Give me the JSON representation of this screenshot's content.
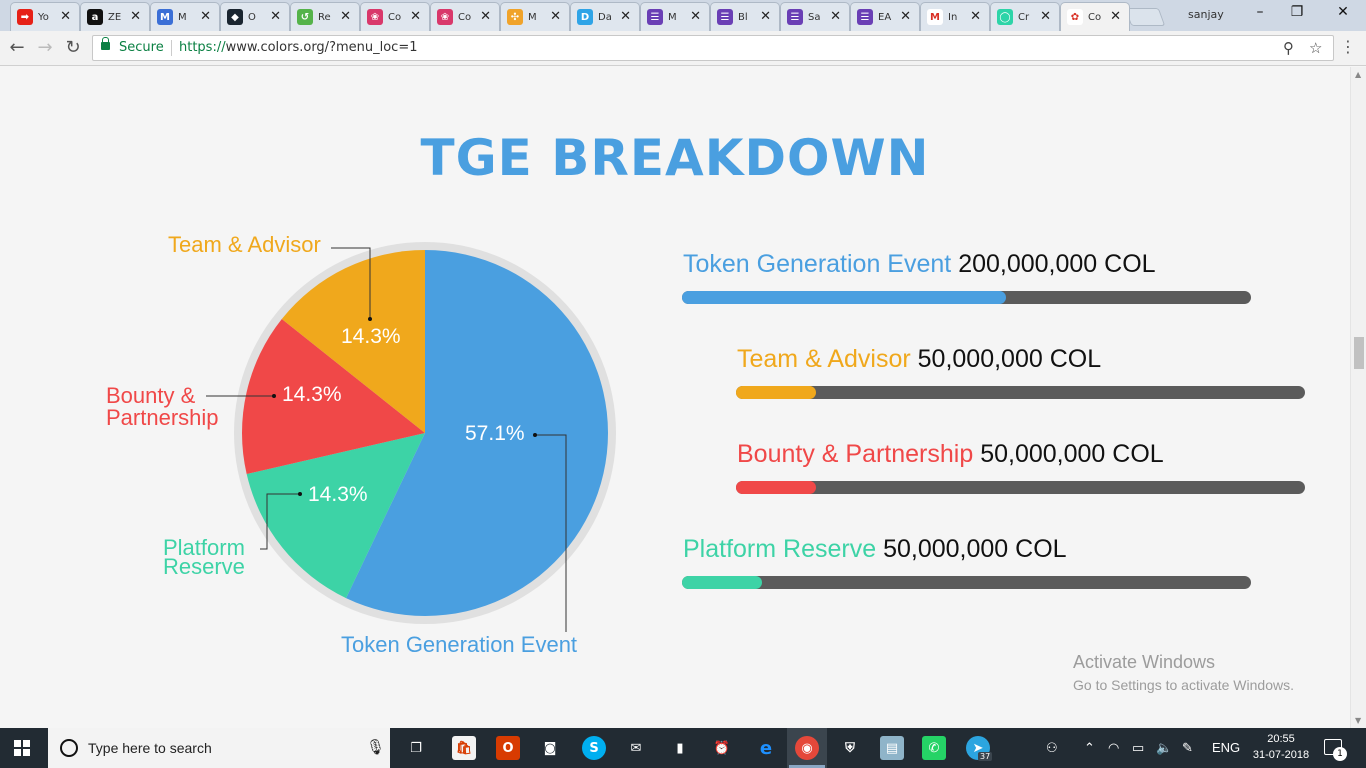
{
  "browser": {
    "tabs": [
      {
        "title": "Yo",
        "icon": "youtube-icon",
        "color": "#e62117",
        "glyph": "➡"
      },
      {
        "title": "ZE",
        "icon": "amazon-icon",
        "color": "#111111",
        "glyph": "a"
      },
      {
        "title": "M",
        "icon": "m-icon",
        "color": "#3b6fd6",
        "glyph": "M"
      },
      {
        "title": "O",
        "icon": "dark-logo-icon",
        "color": "#1a2530",
        "glyph": "◆"
      },
      {
        "title": "Re",
        "icon": "leaf-icon",
        "color": "#55b34a",
        "glyph": "↺"
      },
      {
        "title": "Co",
        "icon": "strawberry-icon",
        "color": "#d9386b",
        "glyph": "❀"
      },
      {
        "title": "Co",
        "icon": "strawberry-icon",
        "color": "#d9386b",
        "glyph": "❀"
      },
      {
        "title": "M",
        "icon": "pinwheel-icon",
        "color": "#f0a32a",
        "glyph": "✣"
      },
      {
        "title": "Da",
        "icon": "d-icon",
        "color": "#2fa4e7",
        "glyph": "D"
      },
      {
        "title": "M",
        "icon": "form-icon",
        "color": "#6a3fb5",
        "glyph": "☰"
      },
      {
        "title": "Bl",
        "icon": "form-icon",
        "color": "#6a3fb5",
        "glyph": "☰"
      },
      {
        "title": "Sa",
        "icon": "form-icon",
        "color": "#6a3fb5",
        "glyph": "☰"
      },
      {
        "title": "EA",
        "icon": "form-icon",
        "color": "#6a3fb5",
        "glyph": "☰"
      },
      {
        "title": "In",
        "icon": "gmail-icon",
        "color": "#ffffff",
        "glyph": "M"
      },
      {
        "title": "Cr",
        "icon": "circle-icon",
        "color": "#2dd4a8",
        "glyph": "◯"
      },
      {
        "title": "Co",
        "icon": "colors-logo-icon",
        "color": "#ffffff",
        "glyph": "✿"
      }
    ],
    "profile": "sanjay",
    "secure_label": "Secure",
    "url_scheme": "https://",
    "url_rest": "www.colors.org/?menu_loc=1"
  },
  "page": {
    "title": "TGE BREAKDOWN",
    "pie_labels": {
      "team": "Team & Advisor",
      "bounty_1": "Bounty &",
      "bounty_2": "Partnership",
      "platform_1": "Platform",
      "platform_2": "Reserve",
      "tge": "Token Generation Event"
    },
    "bars": [
      {
        "label": "Token Generation Event",
        "amount": "200,000,000 COL",
        "color": "#4a9fe0",
        "fill": 0.57
      },
      {
        "label": "Team & Advisor",
        "amount": "50,000,000 COL",
        "color": "#f0a81c",
        "fill": 0.14
      },
      {
        "label": "Bounty & Partnership",
        "amount": "50,000,000 COL",
        "color": "#f04848",
        "fill": 0.14
      },
      {
        "label": "Platform Reserve",
        "amount": "50,000,000 COL",
        "color": "#3dd3a6",
        "fill": 0.14
      }
    ],
    "watermark_1": "Activate Windows",
    "watermark_2": "Go to Settings to activate Windows."
  },
  "chart_data": {
    "type": "pie",
    "title": "TGE BREAKDOWN",
    "categories": [
      "Token Generation Event",
      "Team & Advisor",
      "Bounty & Partnership",
      "Platform Reserve"
    ],
    "values": [
      57.1,
      14.3,
      14.3,
      14.3
    ],
    "value_labels": [
      "57.1%",
      "14.3%",
      "14.3%",
      "14.3%"
    ],
    "colors": [
      "#4a9fe0",
      "#f0a81c",
      "#f04848",
      "#3dd3a6"
    ]
  },
  "taskbar": {
    "search_placeholder": "Type here to search",
    "lang": "ENG",
    "time": "20:55",
    "date": "31-07-2018",
    "notification_count": "1",
    "telegram_badge": "37"
  }
}
